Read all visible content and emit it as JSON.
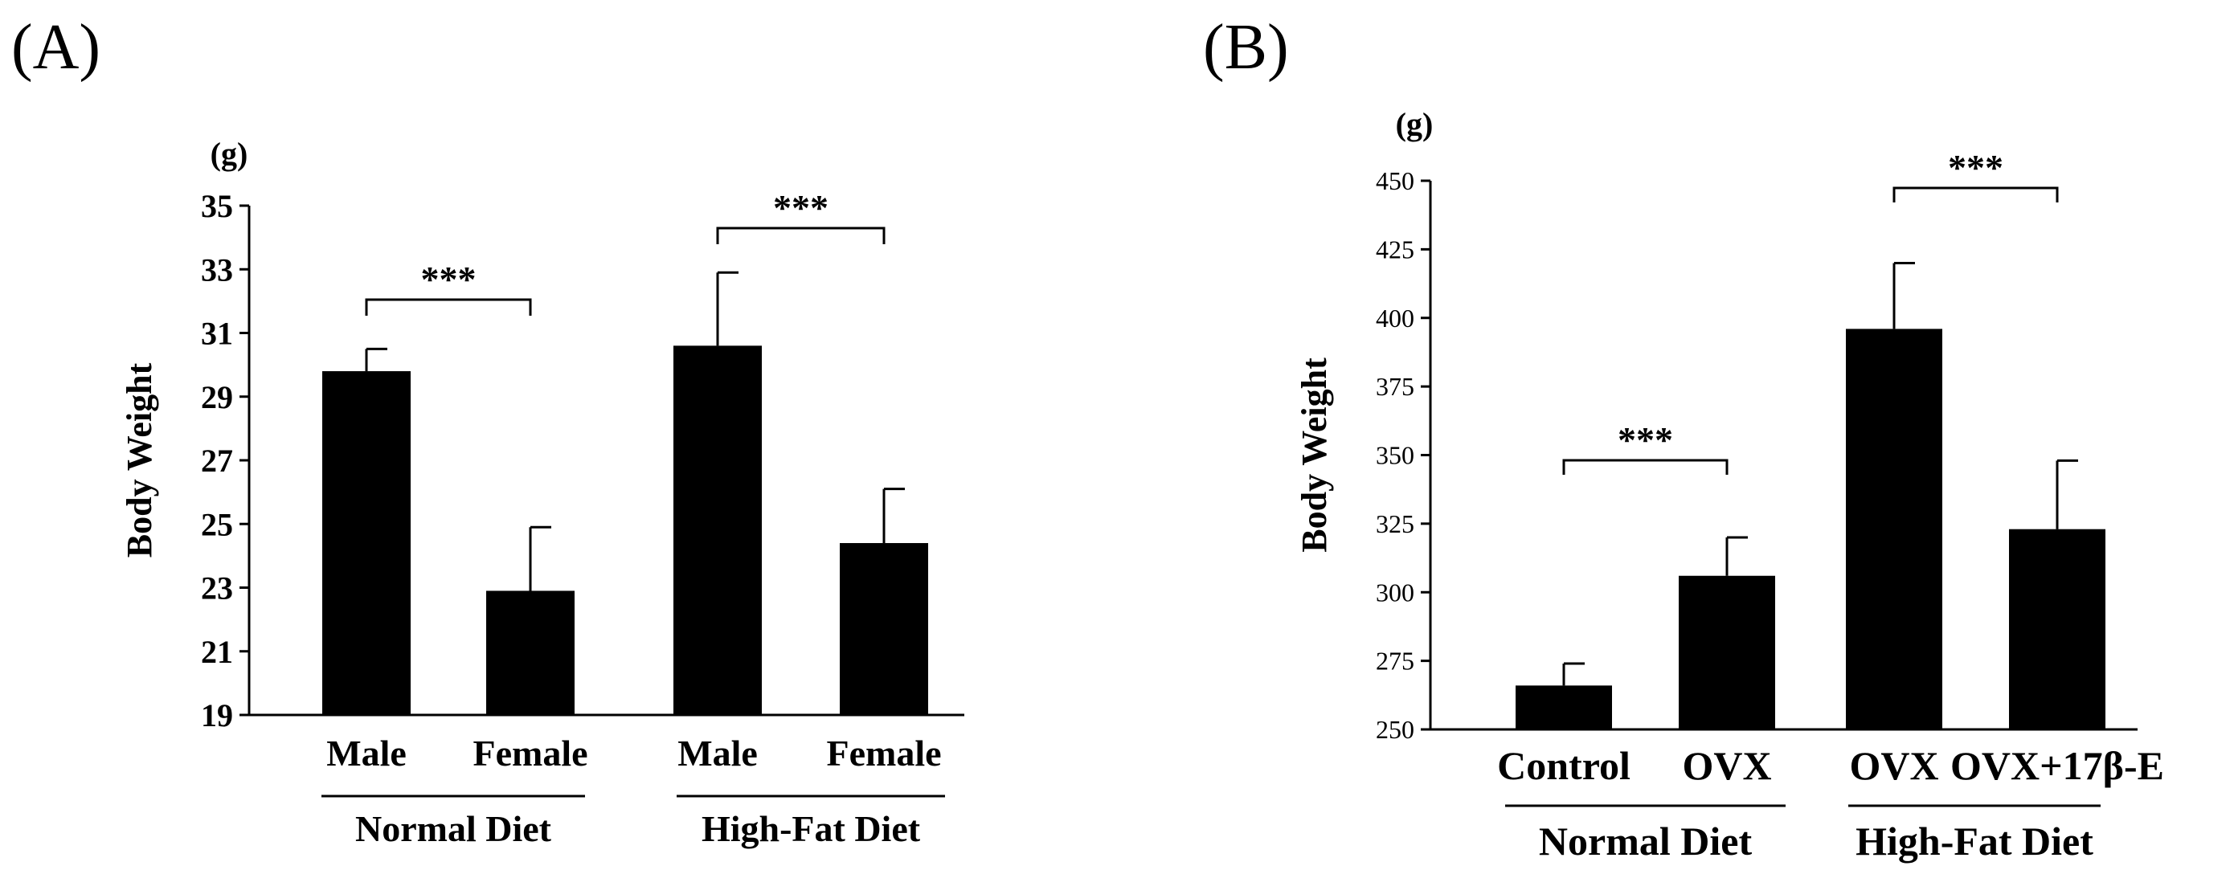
{
  "panels": {
    "a_label": "(A)",
    "b_label": "(B)"
  },
  "chart_data": [
    {
      "type": "bar",
      "panel": "(A)",
      "ylabel": "Body Weight",
      "unit": "(g)",
      "ylim": [
        19,
        35
      ],
      "yticks": [
        "19",
        "21",
        "23",
        "25",
        "27",
        "29",
        "31",
        "33",
        "35"
      ],
      "categories": [
        "Male",
        "Female",
        "Male",
        "Female"
      ],
      "values": [
        29.8,
        22.9,
        30.6,
        24.4
      ],
      "errors": [
        0.7,
        2.0,
        2.3,
        1.7
      ],
      "groups": [
        "Normal Diet",
        "High-Fat Diet"
      ],
      "significance": [
        {
          "from": "Male",
          "to": "Female",
          "group": "Normal Diet",
          "label": "***"
        },
        {
          "from": "Male",
          "to": "Female",
          "group": "High-Fat Diet",
          "label": "***"
        }
      ],
      "bar_color": "#000000"
    },
    {
      "type": "bar",
      "panel": "(B)",
      "ylabel": "Body Weight",
      "unit": "(g)",
      "ylim": [
        250,
        450
      ],
      "yticks": [
        "250",
        "275",
        "300",
        "325",
        "350",
        "375",
        "400",
        "425",
        "450"
      ],
      "categories": [
        "Control",
        "OVX",
        "OVX",
        "OVX+17β-E"
      ],
      "values": [
        266,
        306,
        396,
        323
      ],
      "errors": [
        8,
        14,
        24,
        25
      ],
      "groups": [
        "Normal Diet",
        "High-Fat Diet"
      ],
      "significance": [
        {
          "from": "Control",
          "to": "OVX",
          "group": "Normal Diet",
          "label": "***"
        },
        {
          "from": "OVX",
          "to": "OVX+17β-E",
          "group": "High-Fat Diet",
          "label": "***"
        }
      ],
      "bar_color": "#000000"
    }
  ]
}
